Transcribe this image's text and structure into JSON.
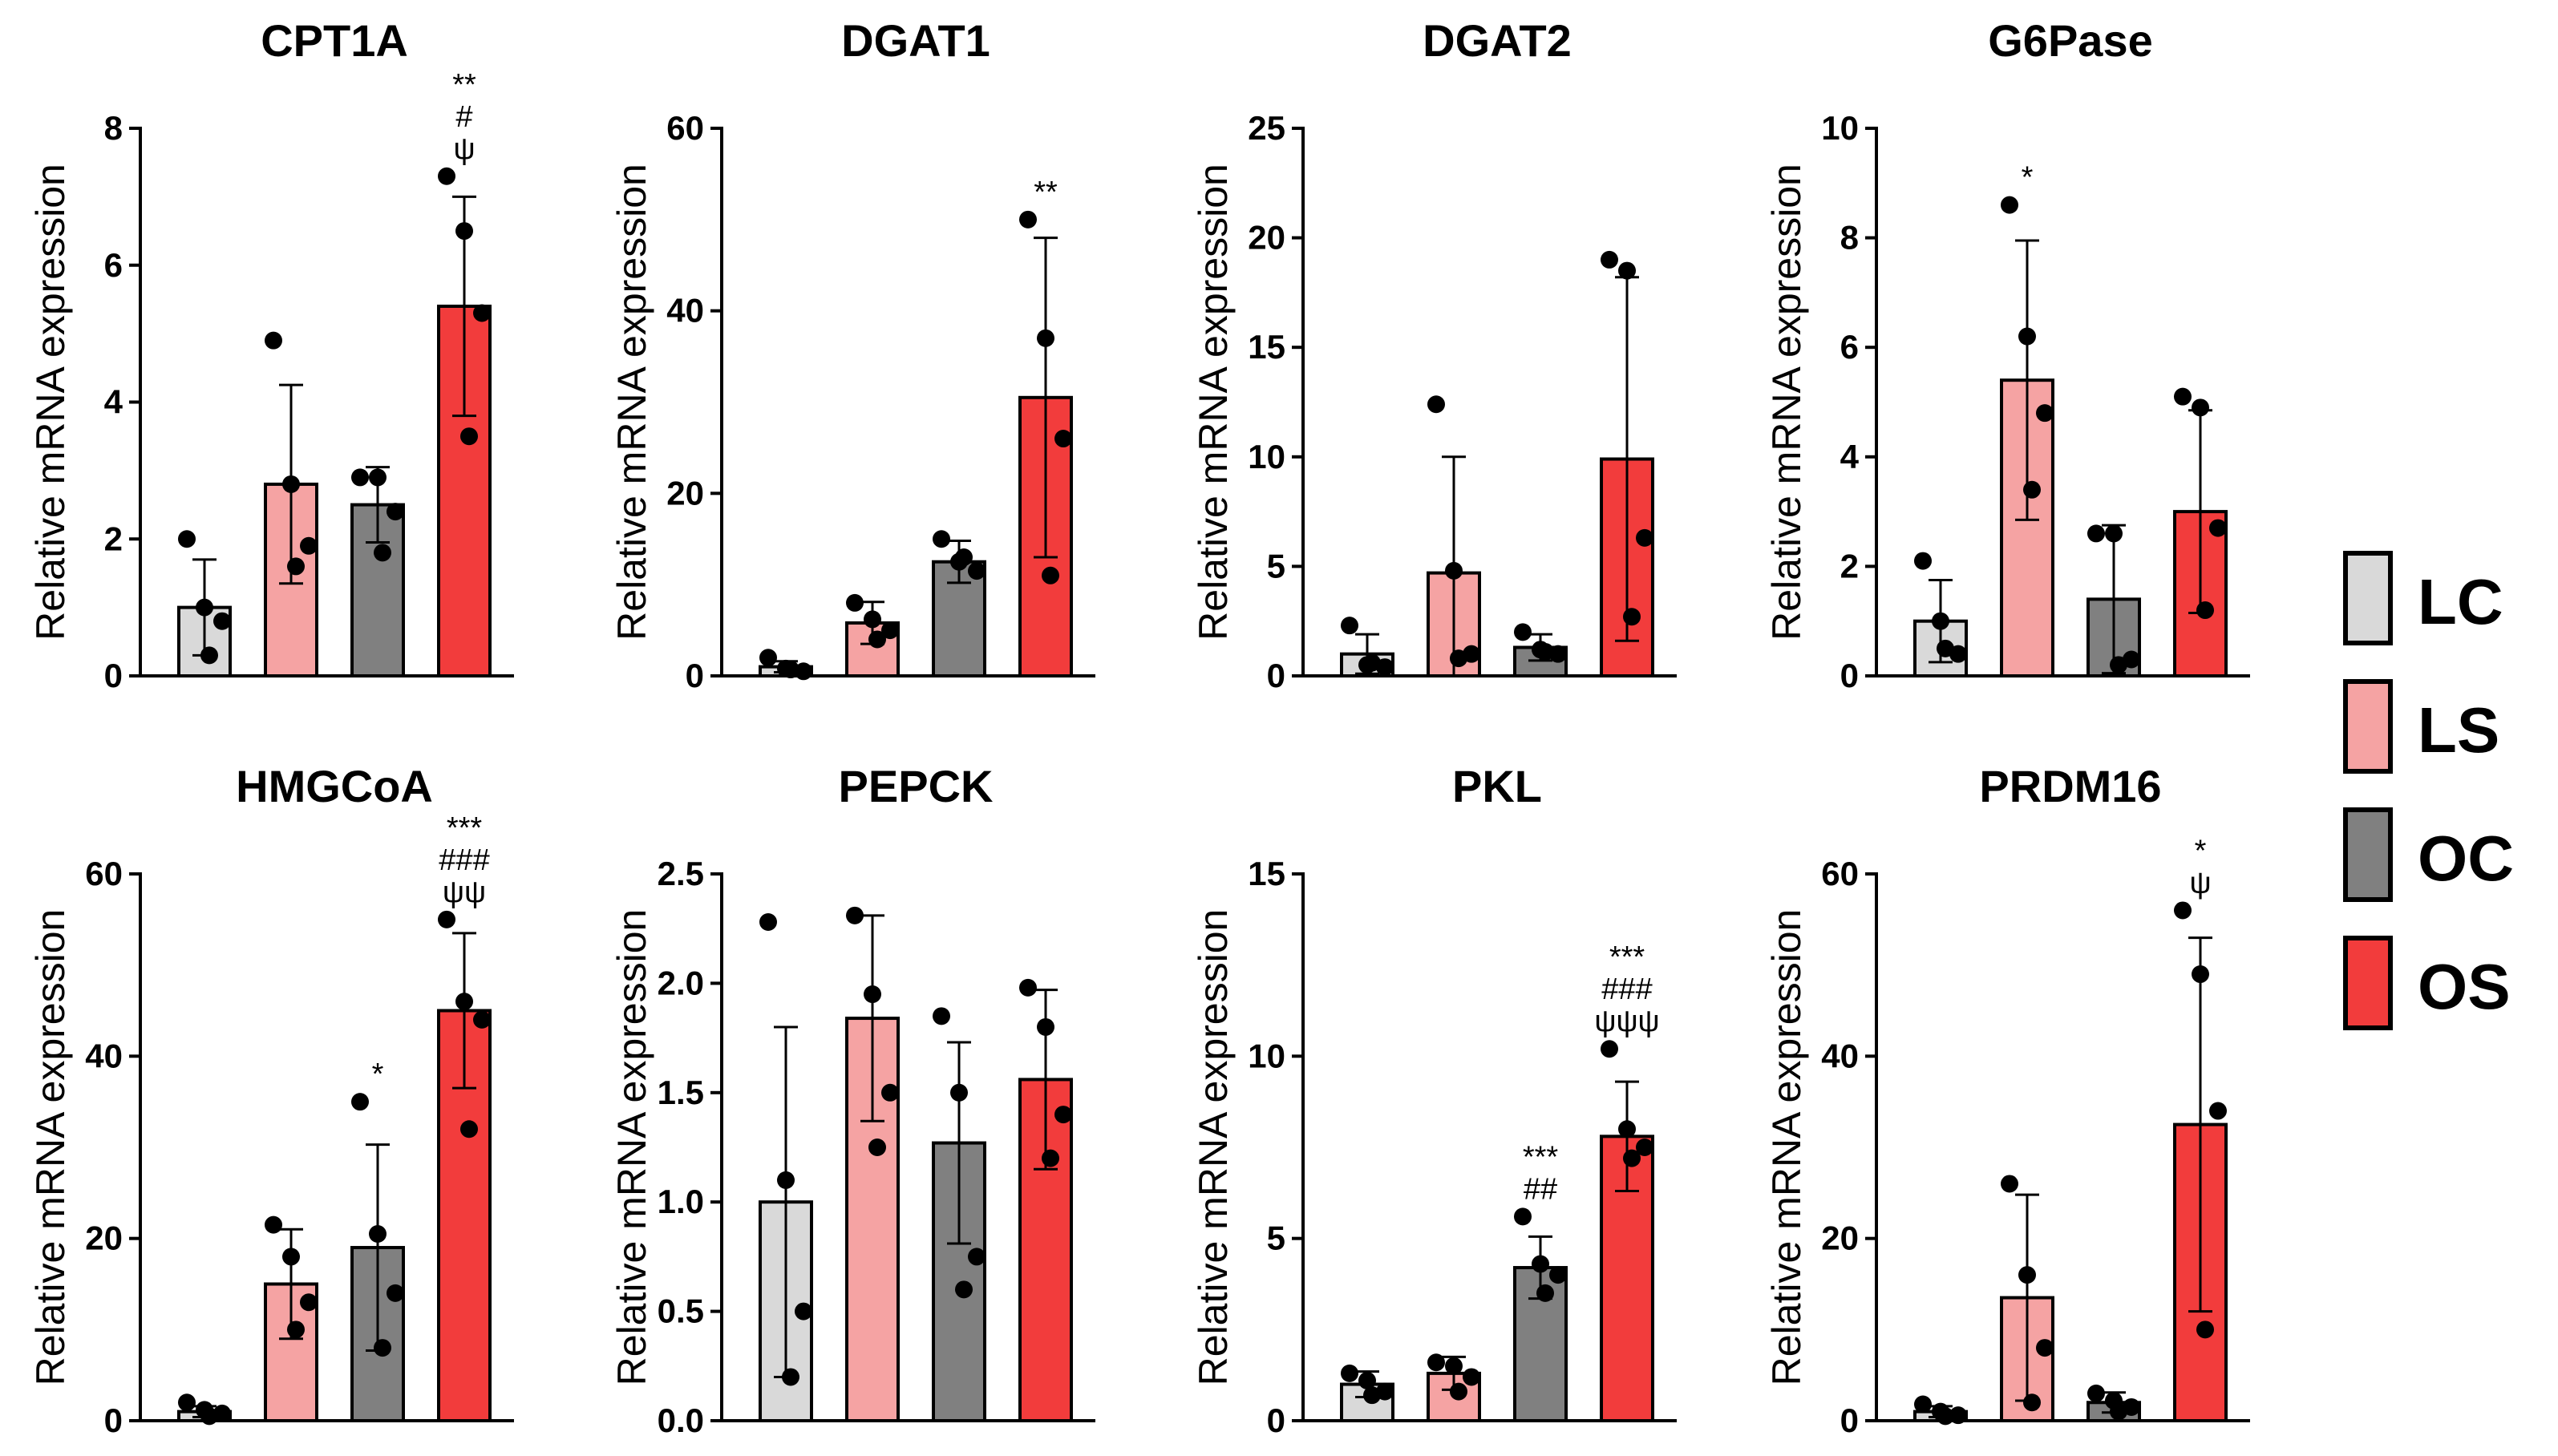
{
  "chart_data": {
    "type": "bar",
    "groups": [
      "LC",
      "LS",
      "OC",
      "OS"
    ],
    "colors": {
      "LC": "#d9d9d9",
      "LS": "#f5a3a3",
      "OC": "#808080",
      "OS": "#f23c3c"
    },
    "legend": {
      "placement": "right",
      "entries": [
        "LC",
        "LS",
        "OC",
        "OS"
      ]
    },
    "panels": [
      {
        "title": "CPT1A",
        "ylabel": "Relative mRNA expression",
        "ylim": [
          0,
          8
        ],
        "yticks": [
          "0",
          "2",
          "4",
          "6",
          "8"
        ],
        "means": [
          1.0,
          2.8,
          2.5,
          5.4
        ],
        "sd": [
          0.7,
          1.45,
          0.55,
          1.6
        ],
        "points": [
          [
            2.0,
            1.0,
            0.8,
            0.3
          ],
          [
            4.9,
            2.8,
            1.9,
            1.6
          ],
          [
            2.9,
            2.9,
            2.4,
            1.8
          ],
          [
            7.3,
            6.5,
            5.3,
            3.5
          ]
        ],
        "sig": [
          [],
          [],
          [],
          [
            "**",
            "#",
            "ψ"
          ]
        ]
      },
      {
        "title": "DGAT1",
        "ylabel": "Relative mRNA expression",
        "ylim": [
          0,
          60
        ],
        "yticks": [
          "0",
          "20",
          "40",
          "60"
        ],
        "means": [
          1.0,
          5.8,
          12.5,
          30.5
        ],
        "sd": [
          0.6,
          2.3,
          2.3,
          17.5
        ],
        "points": [
          [
            2.0,
            0.8,
            0.5,
            0.7
          ],
          [
            8.0,
            6.2,
            5.0,
            4.0
          ],
          [
            15.0,
            12.5,
            11.5,
            13.0
          ],
          [
            50.0,
            37.0,
            26.0,
            11.0
          ]
        ],
        "sig": [
          [],
          [],
          [],
          [
            "**"
          ]
        ]
      },
      {
        "title": "DGAT2",
        "ylabel": "Relative mRNA expression",
        "ylim": [
          0,
          25
        ],
        "yticks": [
          "0",
          "5",
          "10",
          "15",
          "20",
          "25"
        ],
        "means": [
          1.0,
          4.7,
          1.3,
          9.9
        ],
        "sd": [
          0.9,
          5.3,
          0.6,
          8.3
        ],
        "points": [
          [
            2.3,
            0.5,
            0.4,
            0.6
          ],
          [
            12.4,
            4.8,
            1.0,
            0.8
          ],
          [
            2.0,
            1.2,
            1.0,
            1.1
          ],
          [
            19.0,
            18.5,
            6.3,
            2.7
          ]
        ],
        "sig": [
          [],
          [],
          [],
          []
        ]
      },
      {
        "title": "G6Pase",
        "ylabel": "Relative mRNA expression",
        "ylim": [
          0,
          10
        ],
        "yticks": [
          "0",
          "2",
          "4",
          "6",
          "8",
          "10"
        ],
        "means": [
          1.0,
          5.4,
          1.4,
          3.0
        ],
        "sd": [
          0.75,
          2.55,
          1.35,
          1.85
        ],
        "points": [
          [
            2.1,
            1.0,
            0.4,
            0.5
          ],
          [
            8.6,
            6.2,
            4.8,
            3.4
          ],
          [
            2.6,
            2.6,
            0.3,
            0.2
          ],
          [
            5.1,
            4.9,
            2.7,
            1.2
          ]
        ],
        "sig": [
          [],
          [
            "*"
          ],
          [],
          []
        ]
      },
      {
        "title": "HMGCoA",
        "ylabel": "Relative mRNA expression",
        "ylim": [
          0,
          60
        ],
        "yticks": [
          "0",
          "20",
          "40",
          "60"
        ],
        "means": [
          1.0,
          15.0,
          19.0,
          45.0
        ],
        "sd": [
          0.6,
          6.0,
          11.3,
          8.5
        ],
        "points": [
          [
            2.0,
            1.2,
            0.8,
            0.5
          ],
          [
            21.5,
            18.0,
            13.0,
            10.0
          ],
          [
            35.0,
            20.5,
            14.0,
            8.0
          ],
          [
            55.0,
            46.0,
            44.0,
            32.0
          ]
        ],
        "sig": [
          [],
          [],
          [
            "*"
          ],
          [
            "***",
            "###",
            "ψψ"
          ]
        ]
      },
      {
        "title": "PEPCK",
        "ylabel": "Relative mRNA expression",
        "ylim": [
          0,
          2.5
        ],
        "yticks": [
          "0.0",
          "0.5",
          "1.0",
          "1.5",
          "2.0",
          "2.5"
        ],
        "means": [
          1.0,
          1.84,
          1.27,
          1.56
        ],
        "sd": [
          0.8,
          0.47,
          0.46,
          0.41
        ],
        "points": [
          [
            2.28,
            1.1,
            0.5,
            0.2
          ],
          [
            2.31,
            1.95,
            1.5,
            1.25
          ],
          [
            1.85,
            1.5,
            0.75,
            0.6
          ],
          [
            1.98,
            1.8,
            1.4,
            1.2
          ]
        ],
        "sig": [
          [],
          [],
          [],
          []
        ]
      },
      {
        "title": "PKL",
        "ylabel": "Relative mRNA expression",
        "ylim": [
          0,
          15
        ],
        "yticks": [
          "0",
          "5",
          "10",
          "15"
        ],
        "means": [
          1.0,
          1.3,
          4.2,
          7.8
        ],
        "sd": [
          0.35,
          0.45,
          0.85,
          1.5
        ],
        "points": [
          [
            1.3,
            1.1,
            0.8,
            0.7
          ],
          [
            1.6,
            1.5,
            1.2,
            0.8
          ],
          [
            5.6,
            4.3,
            4.0,
            3.5
          ],
          [
            10.2,
            8.0,
            7.5,
            7.2
          ]
        ],
        "sig": [
          [],
          [],
          [
            "***",
            "##"
          ],
          [
            "***",
            "###",
            "ψψψ"
          ]
        ]
      },
      {
        "title": "PRDM16",
        "ylabel": "Relative mRNA expression",
        "ylim": [
          0,
          60
        ],
        "yticks": [
          "0",
          "20",
          "40",
          "60"
        ],
        "means": [
          1.0,
          13.5,
          2.0,
          32.5
        ],
        "sd": [
          0.6,
          11.3,
          1.1,
          20.5
        ],
        "points": [
          [
            1.8,
            1.0,
            0.6,
            0.5
          ],
          [
            26.0,
            16.0,
            8.0,
            2.0
          ],
          [
            3.0,
            2.2,
            1.5,
            1.0
          ],
          [
            56.0,
            49.0,
            34.0,
            10.0
          ]
        ],
        "sig": [
          [],
          [],
          [],
          [
            "*",
            "ψ"
          ]
        ]
      }
    ]
  }
}
